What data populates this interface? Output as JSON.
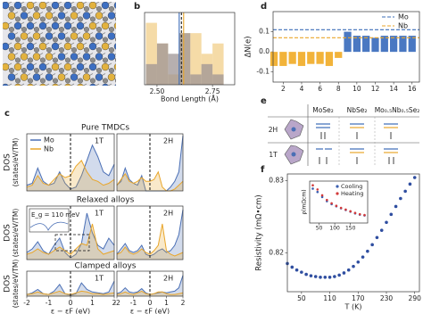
{
  "panel_labels": [
    "a",
    "b",
    "c",
    "d",
    "e",
    "f"
  ],
  "panel_c": {
    "titles": [
      "Pure TMDCs",
      "Relaxed alloys",
      "Clamped alloys"
    ],
    "ylabel": [
      "DOS",
      "(states/eV/TM)"
    ]
  },
  "panel_e": {
    "columns": [
      "MoSe₂",
      "NbSe₂",
      "Mo₀.₅Nb₀.₅Se₂"
    ],
    "rows": [
      "2H",
      "1T"
    ]
  },
  "chart_data": [
    {
      "type": "histogram",
      "xlabel": "Bond Length (Å)",
      "bins": [
        2.45,
        2.5,
        2.55,
        2.6,
        2.65,
        2.7,
        2.75,
        2.8
      ],
      "series": [
        {
          "color": "#f2cf8a",
          "values": [
            6,
            4,
            1,
            5,
            5,
            3,
            4
          ]
        },
        {
          "color": "#9e9494",
          "values": [
            2,
            4,
            3,
            5,
            1,
            2,
            1
          ]
        }
      ],
      "xlim": [
        2.444,
        2.85
      ],
      "ylim": [
        0,
        7
      ],
      "xticks": [
        {
          "value": 2.5,
          "label": "2.50"
        },
        2.75
      ],
      "vlines": [
        {
          "value": 2.6,
          "color": "#3b6cb7",
          "dashed": false
        },
        {
          "value": 2.61,
          "color": "#222222",
          "dashed": true
        },
        {
          "value": 2.62,
          "color": "#e9a62b",
          "dashed": false
        }
      ]
    },
    {
      "type": "bar",
      "ylabel": "ΔN(e)",
      "x": [
        1,
        2,
        3,
        4,
        5,
        6,
        7,
        8,
        9,
        10,
        11,
        12,
        13,
        14,
        15,
        16
      ],
      "series": [
        {
          "color": "#f2b33a",
          "values": [
            -0.07,
            -0.07,
            -0.06,
            -0.07,
            -0.06,
            -0.06,
            -0.07,
            -0.03,
            null,
            null,
            null,
            null,
            null,
            null,
            null,
            null
          ]
        },
        {
          "color": "#4a78c2",
          "values": [
            null,
            null,
            null,
            null,
            null,
            null,
            null,
            null,
            0.1,
            0.08,
            0.08,
            0.07,
            0.08,
            0.08,
            0.08,
            0.08
          ]
        }
      ],
      "hlines": [
        {
          "name": "Mo",
          "value": 0.11,
          "color": "#3b6cb7"
        },
        {
          "name": "Nb",
          "value": 0.07,
          "color": "#e9a62b"
        }
      ],
      "xlim": [
        0.9,
        16.8
      ],
      "ylim": [
        -0.15,
        0.2
      ],
      "xticks": [
        2,
        4,
        6,
        8,
        10,
        12,
        14,
        16
      ],
      "yticks": [
        -0.1,
        {
          "value": 0,
          "label": "0.0"
        },
        0.1
      ]
    },
    {
      "type": "line",
      "area": true,
      "annotation": "1T",
      "x": [
        -2,
        -1.75,
        -1.5,
        -1.25,
        -1,
        -0.75,
        -0.5,
        -0.25,
        0,
        0.25,
        0.5,
        0.75,
        1,
        1.25,
        1.5,
        1.75,
        2
      ],
      "series": [
        {
          "name": "Mo",
          "color": "#4a6fb5",
          "values": [
            0.3,
            0.4,
            1.2,
            0.5,
            0.3,
            0.4,
            1.0,
            0.4,
            0.1,
            0.2,
            0.8,
            1.6,
            2.4,
            1.8,
            1.0,
            0.8,
            1.4
          ]
        },
        {
          "name": "Nb",
          "color": "#e9a62b",
          "values": [
            0.2,
            0.3,
            0.8,
            0.4,
            0.3,
            0.6,
            0.9,
            0.7,
            0.8,
            1.3,
            1.6,
            1.0,
            0.6,
            0.5,
            0.3,
            0.4,
            0.6
          ]
        }
      ],
      "xlim": [
        -2,
        2
      ],
      "ylim": [
        0,
        3
      ],
      "vlines": [
        0
      ]
    },
    {
      "type": "line",
      "area": true,
      "annotation": "2H",
      "x": [
        -2,
        -1.75,
        -1.5,
        -1.25,
        -1,
        -0.75,
        -0.5,
        -0.25,
        0,
        0.25,
        0.5,
        0.75,
        1,
        1.25,
        1.5,
        1.75,
        2
      ],
      "series": [
        {
          "color": "#4a6fb5",
          "values": [
            0.3,
            0.5,
            1.2,
            0.6,
            0.4,
            0.3,
            0.8,
            0,
            0,
            0,
            0,
            0,
            0,
            0.2,
            0.5,
            1.0,
            2.9
          ]
        },
        {
          "color": "#e9a62b",
          "values": [
            0.3,
            0.6,
            0.9,
            0.5,
            0.4,
            0.5,
            0.7,
            0.5,
            0.5,
            0.6,
            1.0,
            0.2,
            0,
            0,
            0.1,
            0.3,
            0.5
          ]
        }
      ],
      "xlim": [
        -2,
        2
      ],
      "ylim": [
        0,
        3
      ],
      "vlines": [
        0
      ]
    },
    {
      "type": "line",
      "area": true,
      "annotation": "1T",
      "inset_label": "E_g = 110 meV",
      "x": [
        -2,
        -1.75,
        -1.5,
        -1.25,
        -1,
        -0.75,
        -0.5,
        -0.25,
        0,
        0.25,
        0.5,
        0.75,
        1,
        1.25,
        1.5,
        1.75,
        2
      ],
      "series": [
        {
          "color": "#4a6fb5",
          "values": [
            0.4,
            0.6,
            1.0,
            0.5,
            0.3,
            0.8,
            1.2,
            0.4,
            0.1,
            0.3,
            0.9,
            2.6,
            1.5,
            0.8,
            0.6,
            1.2,
            0.8
          ]
        },
        {
          "color": "#e9a62b",
          "values": [
            0.3,
            0.4,
            0.6,
            0.4,
            0.3,
            0.5,
            0.7,
            0.5,
            0.3,
            0.6,
            0.9,
            0.8,
            2.0,
            0.6,
            0.3,
            0.4,
            0.5
          ]
        }
      ],
      "xlim": [
        -2,
        2
      ],
      "ylim": [
        0,
        3
      ],
      "vlines": [
        0
      ]
    },
    {
      "type": "line",
      "area": true,
      "annotation": "2H",
      "x": [
        -2,
        -1.75,
        -1.5,
        -1.25,
        -1,
        -0.75,
        -0.5,
        -0.25,
        0,
        0.25,
        0.5,
        0.75,
        1,
        1.25,
        1.5,
        1.75,
        2
      ],
      "series": [
        {
          "color": "#4a6fb5",
          "values": [
            0.3,
            0.6,
            0.9,
            0.5,
            0.4,
            0.5,
            0.8,
            0.3,
            0.2,
            0.3,
            0.5,
            0.6,
            0.4,
            0.5,
            0.8,
            1.4,
            2.8
          ]
        },
        {
          "color": "#e9a62b",
          "values": [
            0.3,
            0.4,
            0.7,
            0.4,
            0.3,
            0.4,
            0.6,
            0.4,
            0.3,
            0.5,
            0.8,
            2.0,
            0.5,
            0.3,
            0.2,
            0.3,
            0.4
          ]
        }
      ],
      "xlim": [
        -2,
        2
      ],
      "ylim": [
        0,
        3
      ],
      "vlines": [
        0
      ]
    },
    {
      "type": "line",
      "area": true,
      "annotation": "1T",
      "xlabel": "ε − εF (eV)",
      "x": [
        -2,
        -1.75,
        -1.5,
        -1.25,
        -1,
        -0.75,
        -0.5,
        -0.25,
        0,
        0.25,
        0.5,
        0.75,
        1,
        1.25,
        1.5,
        1.75,
        2
      ],
      "series": [
        {
          "color": "#4a6fb5",
          "values": [
            0.2,
            0.4,
            0.8,
            0.3,
            0.2,
            0.6,
            1.4,
            0.3,
            0.1,
            0.3,
            1.6,
            0.8,
            0.5,
            0.4,
            0.3,
            0.5,
            1.8
          ]
        },
        {
          "color": "#e9a62b",
          "values": [
            0.2,
            0.3,
            0.5,
            0.3,
            0.2,
            0.4,
            0.6,
            0.3,
            0.2,
            0.4,
            0.6,
            0.5,
            0.3,
            0.3,
            0.2,
            0.3,
            0.4
          ]
        }
      ],
      "xlim": [
        -2,
        2
      ],
      "ylim": [
        0,
        3
      ],
      "vlines": [
        0
      ],
      "xticks": [
        -2,
        -1,
        0,
        1,
        2
      ]
    },
    {
      "type": "line",
      "area": true,
      "annotation": "2H",
      "xlabel": "ε − εF (eV)",
      "x": [
        -2,
        -1.75,
        -1.5,
        -1.25,
        -1,
        -0.75,
        -0.5,
        -0.25,
        0,
        0.25,
        0.5,
        0.75,
        1,
        1.25,
        1.5,
        1.75,
        2
      ],
      "series": [
        {
          "color": "#4a6fb5",
          "values": [
            0.3,
            0.5,
            1.0,
            0.5,
            0.4,
            0.5,
            0.9,
            0.4,
            0.2,
            0.3,
            0.4,
            0.5,
            0.4,
            0.5,
            0.6,
            1.0,
            2.5
          ]
        },
        {
          "color": "#e9a62b",
          "values": [
            0.2,
            0.3,
            0.5,
            0.3,
            0.2,
            0.4,
            0.6,
            0.3,
            0.2,
            0.3,
            0.5,
            0.5,
            0.3,
            0.2,
            0.2,
            0.3,
            0.4
          ]
        }
      ],
      "xlim": [
        -2,
        2
      ],
      "ylim": [
        0,
        3
      ],
      "vlines": [
        0
      ],
      "xticks": [
        -2,
        -1,
        0,
        1,
        2
      ]
    },
    {
      "type": "scatter",
      "xlabel": "T (K)",
      "ylabel": "Resistivity (mΩ•cm)",
      "x": [
        20,
        30,
        40,
        50,
        60,
        70,
        80,
        90,
        100,
        110,
        120,
        130,
        140,
        150,
        160,
        170,
        180,
        190,
        200,
        210,
        220,
        230,
        240,
        250,
        260,
        270,
        280,
        290
      ],
      "series": [
        {
          "color": "#2f4ea0",
          "values": [
            0.8185,
            0.818,
            0.8176,
            0.8173,
            0.817,
            0.8168,
            0.8167,
            0.8166,
            0.8166,
            0.8166,
            0.8167,
            0.8169,
            0.8172,
            0.8176,
            0.8181,
            0.8187,
            0.8194,
            0.8202,
            0.8211,
            0.8221,
            0.8231,
            0.8242,
            0.8253,
            0.8264,
            0.8275,
            0.8285,
            0.8295,
            0.8304
          ]
        }
      ],
      "xlim": [
        20,
        300
      ],
      "ylim": [
        0.8146,
        0.8309
      ],
      "xticks": [
        50,
        110,
        170,
        230,
        290
      ],
      "yticks": [
        0.82,
        0.83
      ]
    },
    {
      "type": "scatter",
      "ylabel": "ρ(mΩcm)",
      "legend": "upper right",
      "x": [
        30,
        45,
        60,
        75,
        90,
        105,
        120,
        135,
        150,
        165,
        180,
        195
      ],
      "series": [
        {
          "name": "Cooling",
          "color": "#3b5fb0",
          "values": [
            0.82,
            0.74,
            0.62,
            0.52,
            0.45,
            0.4,
            0.35,
            0.31,
            0.27,
            0.23,
            0.2,
            0.18
          ]
        },
        {
          "name": "Heating",
          "color": "#d23a3a",
          "values": [
            0.9,
            0.8,
            0.66,
            0.55,
            0.47,
            0.41,
            0.36,
            0.32,
            0.28,
            0.24,
            0.21,
            0.19
          ]
        }
      ],
      "xlim": [
        20,
        205
      ],
      "ylim": [
        0,
        1
      ],
      "xticks": [
        50,
        100,
        150
      ]
    }
  ]
}
